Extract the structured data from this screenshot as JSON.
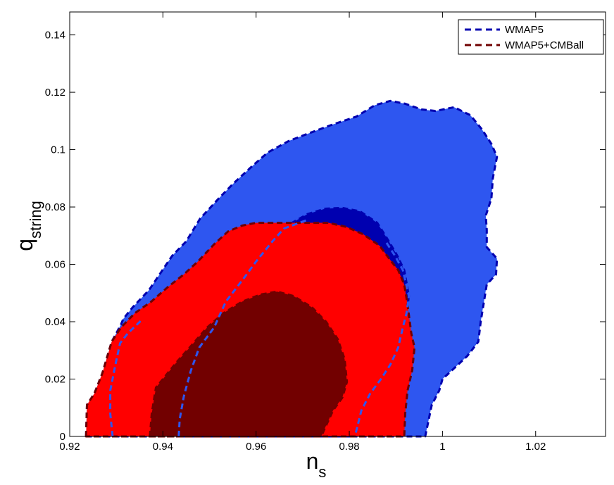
{
  "chart_data": {
    "type": "contour",
    "x_label": {
      "main": "n",
      "sub": "s"
    },
    "y_label": {
      "main": "q",
      "sub": "string"
    },
    "xlim": [
      0.92,
      1.035
    ],
    "ylim": [
      0,
      0.148
    ],
    "x_ticks": [
      0.92,
      0.94,
      0.96,
      0.98,
      1.0,
      1.02
    ],
    "x_tick_labels": [
      "0.92",
      "0.94",
      "0.96",
      "0.98",
      "1",
      "1.02"
    ],
    "y_ticks": [
      0,
      0.02,
      0.04,
      0.06,
      0.08,
      0.1,
      0.12,
      0.14
    ],
    "y_tick_labels": [
      "0",
      "0.02",
      "0.04",
      "0.06",
      "0.08",
      "0.1",
      "0.12",
      "0.14"
    ],
    "grid": false,
    "legend_position": "top-right",
    "legend": [
      {
        "label": "WMAP5",
        "color": "#0000b0",
        "style": "dashed"
      },
      {
        "label": "WMAP5+CMBall",
        "color": "#700000",
        "style": "dashed"
      }
    ],
    "series": [
      {
        "name": "WMAP5",
        "level": "95%",
        "fill": "#2e56f0",
        "edge": "#0000b0",
        "points": [
          [
            0.9235,
            0.0
          ],
          [
            0.9237,
            0.011
          ],
          [
            0.9253,
            0.015
          ],
          [
            0.927,
            0.022
          ],
          [
            0.929,
            0.033
          ],
          [
            0.931,
            0.039
          ],
          [
            0.9315,
            0.041
          ],
          [
            0.9335,
            0.045
          ],
          [
            0.937,
            0.051
          ],
          [
            0.9395,
            0.057
          ],
          [
            0.942,
            0.063
          ],
          [
            0.945,
            0.068
          ],
          [
            0.948,
            0.076
          ],
          [
            0.952,
            0.083
          ],
          [
            0.955,
            0.088
          ],
          [
            0.959,
            0.094
          ],
          [
            0.9625,
            0.099
          ],
          [
            0.967,
            0.103
          ],
          [
            0.971,
            0.1055
          ],
          [
            0.976,
            0.1085
          ],
          [
            0.9815,
            0.1115
          ],
          [
            0.9855,
            0.1155
          ],
          [
            0.9888,
            0.117
          ],
          [
            0.992,
            0.116
          ],
          [
            0.9955,
            0.114
          ],
          [
            0.9985,
            0.1135
          ],
          [
            1.0025,
            0.1148
          ],
          [
            1.006,
            0.112
          ],
          [
            1.0085,
            0.107
          ],
          [
            1.0105,
            0.102
          ],
          [
            1.0117,
            0.0975
          ],
          [
            1.0108,
            0.09
          ],
          [
            1.0105,
            0.083
          ],
          [
            1.0093,
            0.077
          ],
          [
            1.0095,
            0.072
          ],
          [
            1.0095,
            0.066
          ],
          [
            1.0117,
            0.062
          ],
          [
            1.0115,
            0.0565
          ],
          [
            1.0095,
            0.053
          ],
          [
            1.0082,
            0.04
          ],
          [
            1.0077,
            0.033
          ],
          [
            1.0053,
            0.028
          ],
          [
            1.002,
            0.023
          ],
          [
            1.0,
            0.02
          ],
          [
            0.9993,
            0.016
          ],
          [
            0.9977,
            0.011
          ],
          [
            0.9963,
            0.0
          ]
        ]
      },
      {
        "name": "WMAP5",
        "level": "68%",
        "fill": "#0000b0",
        "edge": "#0000b0",
        "points": [
          [
            0.9434,
            0.0
          ],
          [
            0.9436,
            0.006
          ],
          [
            0.9445,
            0.014
          ],
          [
            0.946,
            0.023
          ],
          [
            0.9478,
            0.031
          ],
          [
            0.951,
            0.038
          ],
          [
            0.9535,
            0.047
          ],
          [
            0.9573,
            0.055
          ],
          [
            0.96,
            0.061
          ],
          [
            0.9635,
            0.068
          ],
          [
            0.9672,
            0.074
          ],
          [
            0.971,
            0.0775
          ],
          [
            0.9748,
            0.0794
          ],
          [
            0.9785,
            0.0797
          ],
          [
            0.9823,
            0.0785
          ],
          [
            0.986,
            0.0745
          ],
          [
            0.9885,
            0.068
          ],
          [
            0.9903,
            0.063
          ],
          [
            0.9918,
            0.058
          ],
          [
            0.9928,
            0.049
          ],
          [
            0.9923,
            0.043
          ],
          [
            0.9915,
            0.038
          ],
          [
            0.9905,
            0.031
          ],
          [
            0.9888,
            0.025
          ],
          [
            0.9868,
            0.02
          ],
          [
            0.9845,
            0.015
          ],
          [
            0.9826,
            0.009
          ],
          [
            0.9812,
            0.0
          ]
        ]
      },
      {
        "name": "WMAP5+CMBall",
        "level": "95%",
        "fill": "#ff0000",
        "edge": "#700000",
        "points": [
          [
            0.9235,
            0.0
          ],
          [
            0.9237,
            0.011
          ],
          [
            0.9253,
            0.015
          ],
          [
            0.927,
            0.022
          ],
          [
            0.929,
            0.033
          ],
          [
            0.931,
            0.038
          ],
          [
            0.934,
            0.043
          ],
          [
            0.9375,
            0.047
          ],
          [
            0.941,
            0.052
          ],
          [
            0.9445,
            0.0565
          ],
          [
            0.9475,
            0.061
          ],
          [
            0.951,
            0.067
          ],
          [
            0.954,
            0.0715
          ],
          [
            0.957,
            0.0735
          ],
          [
            0.96,
            0.0745
          ],
          [
            0.966,
            0.0745
          ],
          [
            0.971,
            0.0745
          ],
          [
            0.9755,
            0.0745
          ],
          [
            0.9795,
            0.073
          ],
          [
            0.983,
            0.0705
          ],
          [
            0.9865,
            0.0665
          ],
          [
            0.9888,
            0.0615
          ],
          [
            0.9905,
            0.058
          ],
          [
            0.9918,
            0.053
          ],
          [
            0.9925,
            0.046
          ],
          [
            0.9933,
            0.036
          ],
          [
            0.994,
            0.031
          ],
          [
            0.9935,
            0.023
          ],
          [
            0.9925,
            0.016
          ],
          [
            0.992,
            0.008
          ],
          [
            0.9918,
            0.0
          ]
        ]
      },
      {
        "name": "WMAP5+CMBall",
        "level": "68%",
        "fill": "#720000",
        "edge": "#700000",
        "points": [
          [
            0.9372,
            0.0
          ],
          [
            0.9376,
            0.008
          ],
          [
            0.9385,
            0.017
          ],
          [
            0.9405,
            0.021
          ],
          [
            0.943,
            0.026
          ],
          [
            0.946,
            0.0315
          ],
          [
            0.9495,
            0.038
          ],
          [
            0.953,
            0.043
          ],
          [
            0.957,
            0.047
          ],
          [
            0.961,
            0.0495
          ],
          [
            0.9645,
            0.0505
          ],
          [
            0.968,
            0.049
          ],
          [
            0.972,
            0.045
          ],
          [
            0.975,
            0.04
          ],
          [
            0.9775,
            0.034
          ],
          [
            0.979,
            0.027
          ],
          [
            0.9795,
            0.019
          ],
          [
            0.9785,
            0.0135
          ],
          [
            0.9765,
            0.009
          ],
          [
            0.9748,
            0.003
          ],
          [
            0.974,
            0.0
          ]
        ]
      }
    ],
    "dashed_lines": [
      {
        "name": "WMAP5",
        "level": "95% (behind red)",
        "color": "#2e56f0",
        "points": [
          [
            0.9292,
            0.0
          ],
          [
            0.9287,
            0.008
          ],
          [
            0.9287,
            0.016
          ],
          [
            0.9298,
            0.025
          ],
          [
            0.9308,
            0.0325
          ],
          [
            0.9325,
            0.036
          ],
          [
            0.9357,
            0.041
          ]
        ]
      },
      {
        "name": "WMAP5",
        "level": "68% (behind red)",
        "color": "#2e56f0",
        "points": [
          [
            0.9434,
            0.0
          ],
          [
            0.9436,
            0.006
          ],
          [
            0.9445,
            0.014
          ],
          [
            0.946,
            0.023
          ],
          [
            0.9478,
            0.031
          ],
          [
            0.951,
            0.038
          ],
          [
            0.9535,
            0.047
          ],
          [
            0.9573,
            0.055
          ],
          [
            0.96,
            0.061
          ],
          [
            0.9635,
            0.068
          ],
          [
            0.966,
            0.0725
          ],
          [
            0.971,
            0.0755
          ]
        ]
      },
      {
        "name": "WMAP5",
        "level": "68% (behind red)",
        "color": "#2e56f0",
        "points": [
          [
            0.988,
            0.0675
          ],
          [
            0.9898,
            0.063
          ],
          [
            0.9915,
            0.058
          ],
          [
            0.9928,
            0.049
          ],
          [
            0.9923,
            0.043
          ],
          [
            0.9915,
            0.038
          ],
          [
            0.9905,
            0.031
          ],
          [
            0.9888,
            0.025
          ],
          [
            0.9868,
            0.02
          ],
          [
            0.9845,
            0.015
          ],
          [
            0.9826,
            0.009
          ],
          [
            0.9812,
            0.0
          ]
        ]
      }
    ]
  }
}
